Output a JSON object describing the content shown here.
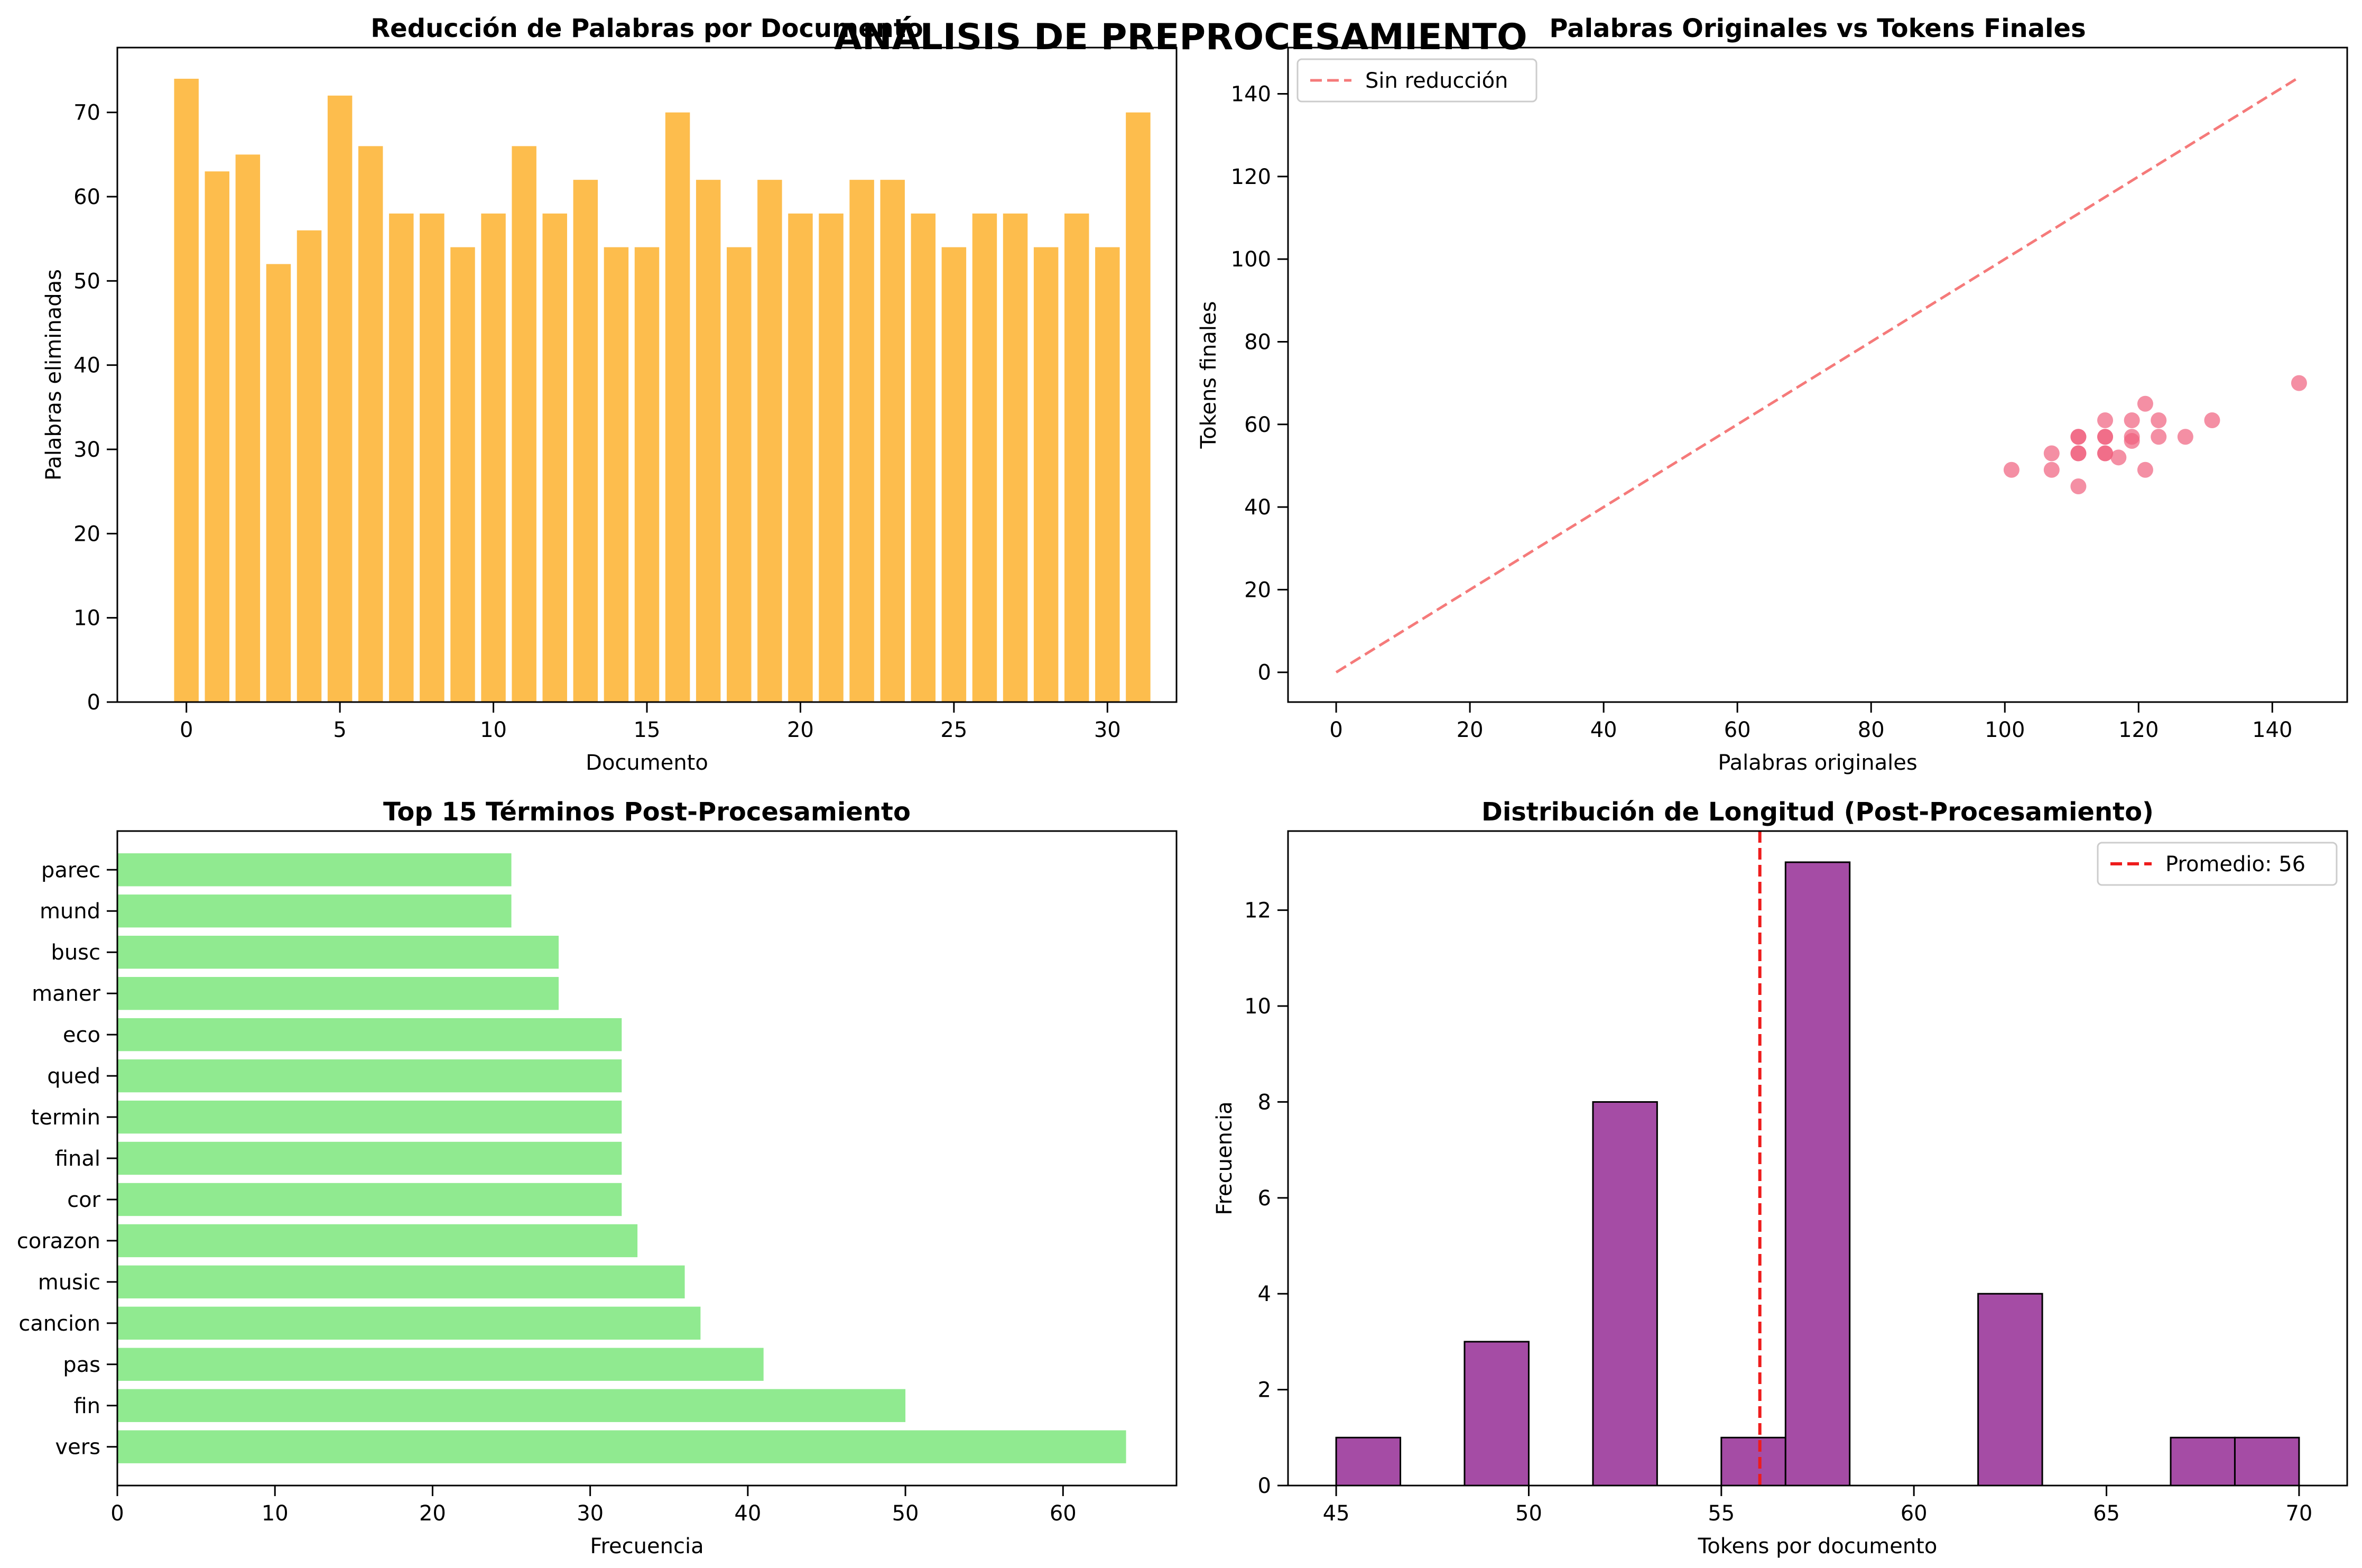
{
  "figure": {
    "suptitle": "ANÁLISIS DE PREPROCESAMIENTO"
  },
  "chart_data": [
    {
      "id": "reduction",
      "type": "bar",
      "title": "Reducción de Palabras por Documento",
      "xlabel": "Documento",
      "ylabel": "Palabras eliminadas",
      "xlim": [
        -2.25,
        32.25
      ],
      "ylim": [
        0,
        77.7
      ],
      "xticks": [
        0,
        5,
        10,
        15,
        20,
        25,
        30
      ],
      "yticks": [
        0,
        10,
        20,
        30,
        40,
        50,
        60,
        70
      ],
      "color": "#fdbd4d",
      "categories": [
        0,
        1,
        2,
        3,
        4,
        5,
        6,
        7,
        8,
        9,
        10,
        11,
        12,
        13,
        14,
        15,
        16,
        17,
        18,
        19,
        20,
        21,
        22,
        23,
        24,
        25,
        26,
        27,
        28,
        29,
        30,
        31
      ],
      "values": [
        74,
        63,
        65,
        52,
        56,
        72,
        66,
        58,
        58,
        54,
        58,
        66,
        58,
        62,
        54,
        54,
        70,
        62,
        54,
        62,
        58,
        58,
        62,
        62,
        58,
        54,
        58,
        58,
        54,
        58,
        54,
        70
      ]
    },
    {
      "id": "scatter",
      "type": "scatter",
      "title": "Palabras Originales vs Tokens Finales",
      "xlabel": "Palabras originales",
      "ylabel": "Tokens finales",
      "xlim": [
        -7.2,
        151.2
      ],
      "ylim": [
        -7.2,
        151.2
      ],
      "xticks": [
        0,
        20,
        40,
        60,
        80,
        100,
        120,
        140
      ],
      "yticks": [
        0,
        20,
        40,
        60,
        80,
        100,
        120,
        140
      ],
      "color": "#f0607e",
      "line": {
        "name": "Sin reducción",
        "x": [
          0,
          144
        ],
        "y": [
          0,
          144
        ],
        "color": "#f57a7a"
      },
      "legend_position": "top-left",
      "points": [
        [
          101,
          49
        ],
        [
          107,
          49
        ],
        [
          107,
          53
        ],
        [
          111,
          45
        ],
        [
          111,
          53
        ],
        [
          111,
          53
        ],
        [
          111,
          57
        ],
        [
          111,
          57
        ],
        [
          115,
          53
        ],
        [
          115,
          53
        ],
        [
          115,
          57
        ],
        [
          115,
          57
        ],
        [
          115,
          61
        ],
        [
          117,
          52
        ],
        [
          119,
          56
        ],
        [
          119,
          57
        ],
        [
          119,
          61
        ],
        [
          121,
          49
        ],
        [
          121,
          65
        ],
        [
          123,
          57
        ],
        [
          123,
          61
        ],
        [
          127,
          57
        ],
        [
          131,
          61
        ],
        [
          144,
          70
        ]
      ]
    },
    {
      "id": "terms",
      "type": "bar",
      "orientation": "horizontal",
      "title": "Top 15 Términos Post-Procesamiento",
      "xlabel": "Frecuencia",
      "ylabel": "",
      "xlim": [
        0,
        67.2
      ],
      "xticks": [
        0,
        10,
        20,
        30,
        40,
        50,
        60
      ],
      "color": "#90ea90",
      "categories": [
        "vers",
        "fin",
        "pas",
        "cancion",
        "music",
        "corazon",
        "cor",
        "final",
        "termin",
        "qued",
        "eco",
        "maner",
        "busc",
        "mund",
        "parec"
      ],
      "values": [
        64,
        50,
        41,
        37,
        36,
        33,
        32,
        32,
        32,
        32,
        32,
        28,
        28,
        25,
        25
      ]
    },
    {
      "id": "histogram",
      "type": "bar",
      "subtype": "histogram",
      "title": "Distribución de Longitud (Post-Procesamiento)",
      "xlabel": "Tokens por documento",
      "ylabel": "Frecuencia",
      "xlim": [
        43.75,
        71.25
      ],
      "ylim": [
        0,
        13.65
      ],
      "xticks": [
        45,
        50,
        55,
        60,
        65,
        70
      ],
      "yticks": [
        0,
        2,
        4,
        6,
        8,
        10,
        12
      ],
      "color": "#a54ca5",
      "bin_edges": [
        45,
        46.667,
        48.333,
        50,
        51.667,
        53.333,
        55,
        56.667,
        58.333,
        60,
        61.667,
        63.333,
        65,
        66.667,
        68.333,
        70
      ],
      "counts": [
        1,
        0,
        3,
        0,
        8,
        0,
        1,
        13,
        0,
        0,
        4,
        0,
        0,
        1,
        1
      ],
      "mean_line": {
        "value": 56,
        "label": "Promedio: 56",
        "color": "#ee1c1c"
      },
      "legend_position": "top-right"
    }
  ]
}
